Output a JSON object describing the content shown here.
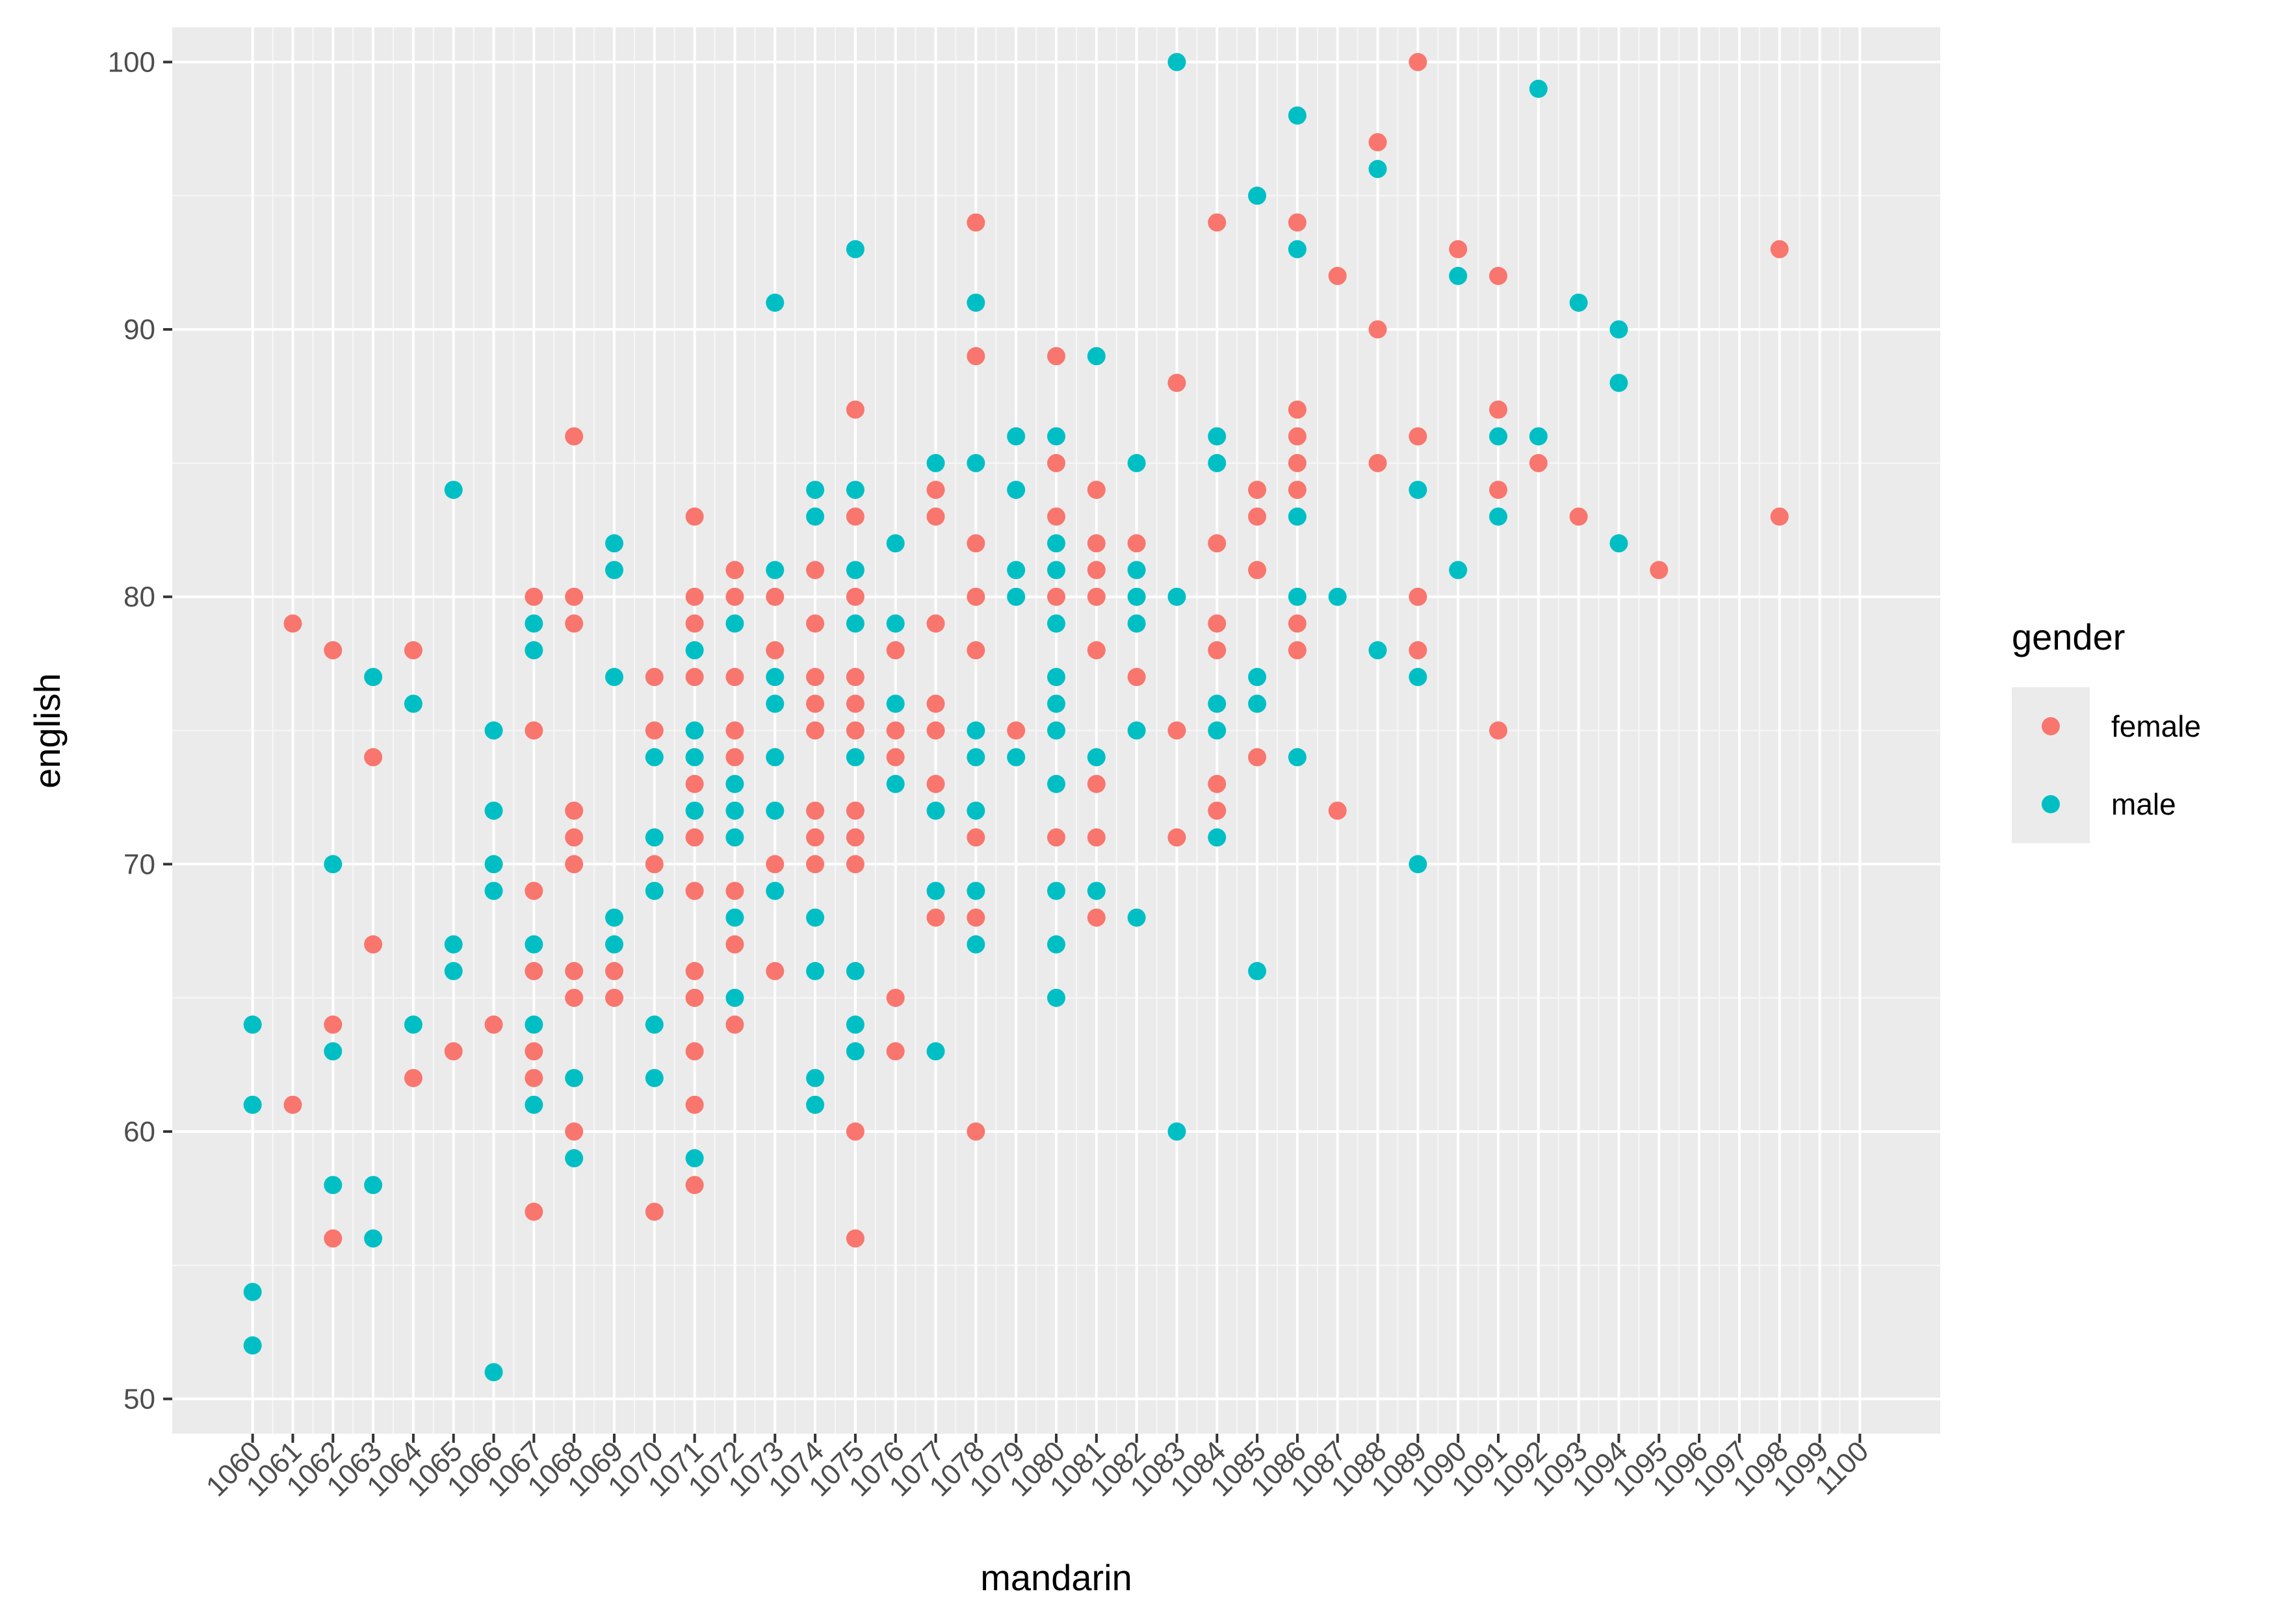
{
  "chart_data": {
    "type": "scatter",
    "xlabel": "mandarin",
    "ylabel": "english",
    "xlim": [
      1058,
      1102
    ],
    "ylim": [
      48.7,
      101.3
    ],
    "xticks": [
      1060,
      1061,
      1062,
      1063,
      1064,
      1065,
      1066,
      1067,
      1068,
      1069,
      1070,
      1071,
      1072,
      1073,
      1074,
      1075,
      1076,
      1077,
      1078,
      1079,
      1080,
      1081,
      1082,
      1083,
      1084,
      1085,
      1086,
      1087,
      1088,
      1089,
      1090,
      1091,
      1092,
      1093,
      1094,
      1095,
      1096,
      1097,
      1098,
      1099,
      1100
    ],
    "yticks": [
      50,
      60,
      70,
      80,
      90,
      100
    ],
    "grid": true,
    "legend": {
      "title": "gender",
      "position": "right"
    },
    "series": [
      {
        "name": "female",
        "color": "#F8766D",
        "points": [
          [
            1061,
            79
          ],
          [
            1061,
            61
          ],
          [
            1062,
            78
          ],
          [
            1062,
            64
          ],
          [
            1062,
            56
          ],
          [
            1063,
            74
          ],
          [
            1063,
            67
          ],
          [
            1064,
            78
          ],
          [
            1064,
            62
          ],
          [
            1065,
            63
          ],
          [
            1066,
            64
          ],
          [
            1067,
            80
          ],
          [
            1067,
            75
          ],
          [
            1067,
            69
          ],
          [
            1067,
            66
          ],
          [
            1067,
            63
          ],
          [
            1067,
            62
          ],
          [
            1067,
            57
          ],
          [
            1068,
            86
          ],
          [
            1068,
            80
          ],
          [
            1068,
            79
          ],
          [
            1068,
            72
          ],
          [
            1068,
            71
          ],
          [
            1068,
            70
          ],
          [
            1068,
            66
          ],
          [
            1068,
            65
          ],
          [
            1068,
            60
          ],
          [
            1069,
            66
          ],
          [
            1069,
            65
          ],
          [
            1070,
            77
          ],
          [
            1070,
            75
          ],
          [
            1070,
            70
          ],
          [
            1070,
            57
          ],
          [
            1071,
            83
          ],
          [
            1071,
            80
          ],
          [
            1071,
            79
          ],
          [
            1071,
            77
          ],
          [
            1071,
            73
          ],
          [
            1071,
            71
          ],
          [
            1071,
            69
          ],
          [
            1071,
            66
          ],
          [
            1071,
            65
          ],
          [
            1071,
            63
          ],
          [
            1071,
            61
          ],
          [
            1071,
            58
          ],
          [
            1072,
            81
          ],
          [
            1072,
            80
          ],
          [
            1072,
            77
          ],
          [
            1072,
            75
          ],
          [
            1072,
            74
          ],
          [
            1072,
            69
          ],
          [
            1072,
            67
          ],
          [
            1072,
            64
          ],
          [
            1073,
            80
          ],
          [
            1073,
            78
          ],
          [
            1073,
            70
          ],
          [
            1073,
            66
          ],
          [
            1074,
            81
          ],
          [
            1074,
            79
          ],
          [
            1074,
            77
          ],
          [
            1074,
            76
          ],
          [
            1074,
            75
          ],
          [
            1074,
            72
          ],
          [
            1074,
            71
          ],
          [
            1074,
            70
          ],
          [
            1075,
            87
          ],
          [
            1075,
            83
          ],
          [
            1075,
            80
          ],
          [
            1075,
            77
          ],
          [
            1075,
            76
          ],
          [
            1075,
            75
          ],
          [
            1075,
            72
          ],
          [
            1075,
            71
          ],
          [
            1075,
            70
          ],
          [
            1075,
            60
          ],
          [
            1075,
            56
          ],
          [
            1076,
            78
          ],
          [
            1076,
            75
          ],
          [
            1076,
            74
          ],
          [
            1076,
            65
          ],
          [
            1076,
            63
          ],
          [
            1077,
            84
          ],
          [
            1077,
            83
          ],
          [
            1077,
            79
          ],
          [
            1077,
            76
          ],
          [
            1077,
            75
          ],
          [
            1077,
            73
          ],
          [
            1077,
            68
          ],
          [
            1078,
            94
          ],
          [
            1078,
            89
          ],
          [
            1078,
            82
          ],
          [
            1078,
            80
          ],
          [
            1078,
            78
          ],
          [
            1078,
            71
          ],
          [
            1078,
            68
          ],
          [
            1078,
            60
          ],
          [
            1079,
            75
          ],
          [
            1080,
            89
          ],
          [
            1080,
            85
          ],
          [
            1080,
            83
          ],
          [
            1080,
            80
          ],
          [
            1080,
            71
          ],
          [
            1081,
            84
          ],
          [
            1081,
            82
          ],
          [
            1081,
            81
          ],
          [
            1081,
            80
          ],
          [
            1081,
            78
          ],
          [
            1081,
            73
          ],
          [
            1081,
            71
          ],
          [
            1081,
            68
          ],
          [
            1082,
            82
          ],
          [
            1082,
            77
          ],
          [
            1083,
            88
          ],
          [
            1083,
            75
          ],
          [
            1083,
            71
          ],
          [
            1084,
            94
          ],
          [
            1084,
            82
          ],
          [
            1084,
            79
          ],
          [
            1084,
            78
          ],
          [
            1084,
            73
          ],
          [
            1084,
            72
          ],
          [
            1085,
            84
          ],
          [
            1085,
            83
          ],
          [
            1085,
            81
          ],
          [
            1085,
            74
          ],
          [
            1086,
            94
          ],
          [
            1086,
            87
          ],
          [
            1086,
            86
          ],
          [
            1086,
            85
          ],
          [
            1086,
            84
          ],
          [
            1086,
            79
          ],
          [
            1086,
            78
          ],
          [
            1087,
            92
          ],
          [
            1087,
            72
          ],
          [
            1088,
            97
          ],
          [
            1088,
            90
          ],
          [
            1088,
            85
          ],
          [
            1089,
            100
          ],
          [
            1089,
            86
          ],
          [
            1089,
            80
          ],
          [
            1089,
            78
          ],
          [
            1090,
            93
          ],
          [
            1091,
            92
          ],
          [
            1091,
            87
          ],
          [
            1091,
            84
          ],
          [
            1091,
            75
          ],
          [
            1092,
            85
          ],
          [
            1093,
            83
          ],
          [
            1095,
            81
          ],
          [
            1098,
            93
          ],
          [
            1098,
            83
          ]
        ]
      },
      {
        "name": "male",
        "color": "#00BFC4",
        "points": [
          [
            1060,
            64
          ],
          [
            1060,
            61
          ],
          [
            1060,
            54
          ],
          [
            1060,
            52
          ],
          [
            1062,
            70
          ],
          [
            1062,
            63
          ],
          [
            1062,
            58
          ],
          [
            1063,
            77
          ],
          [
            1063,
            58
          ],
          [
            1063,
            56
          ],
          [
            1064,
            76
          ],
          [
            1064,
            64
          ],
          [
            1065,
            84
          ],
          [
            1065,
            67
          ],
          [
            1065,
            66
          ],
          [
            1066,
            75
          ],
          [
            1066,
            72
          ],
          [
            1066,
            70
          ],
          [
            1066,
            69
          ],
          [
            1066,
            51
          ],
          [
            1067,
            79
          ],
          [
            1067,
            78
          ],
          [
            1067,
            67
          ],
          [
            1067,
            64
          ],
          [
            1067,
            61
          ],
          [
            1068,
            62
          ],
          [
            1068,
            59
          ],
          [
            1069,
            82
          ],
          [
            1069,
            81
          ],
          [
            1069,
            77
          ],
          [
            1069,
            68
          ],
          [
            1069,
            67
          ],
          [
            1070,
            74
          ],
          [
            1070,
            71
          ],
          [
            1070,
            69
          ],
          [
            1070,
            64
          ],
          [
            1070,
            62
          ],
          [
            1071,
            78
          ],
          [
            1071,
            75
          ],
          [
            1071,
            74
          ],
          [
            1071,
            72
          ],
          [
            1071,
            59
          ],
          [
            1072,
            79
          ],
          [
            1072,
            73
          ],
          [
            1072,
            72
          ],
          [
            1072,
            71
          ],
          [
            1072,
            68
          ],
          [
            1072,
            65
          ],
          [
            1073,
            91
          ],
          [
            1073,
            81
          ],
          [
            1073,
            77
          ],
          [
            1073,
            76
          ],
          [
            1073,
            74
          ],
          [
            1073,
            72
          ],
          [
            1073,
            69
          ],
          [
            1074,
            84
          ],
          [
            1074,
            83
          ],
          [
            1074,
            68
          ],
          [
            1074,
            66
          ],
          [
            1074,
            62
          ],
          [
            1074,
            61
          ],
          [
            1075,
            93
          ],
          [
            1075,
            84
          ],
          [
            1075,
            81
          ],
          [
            1075,
            79
          ],
          [
            1075,
            74
          ],
          [
            1075,
            66
          ],
          [
            1075,
            64
          ],
          [
            1075,
            63
          ],
          [
            1076,
            82
          ],
          [
            1076,
            79
          ],
          [
            1076,
            76
          ],
          [
            1076,
            73
          ],
          [
            1077,
            85
          ],
          [
            1077,
            72
          ],
          [
            1077,
            69
          ],
          [
            1077,
            63
          ],
          [
            1078,
            91
          ],
          [
            1078,
            85
          ],
          [
            1078,
            75
          ],
          [
            1078,
            74
          ],
          [
            1078,
            72
          ],
          [
            1078,
            69
          ],
          [
            1078,
            67
          ],
          [
            1079,
            86
          ],
          [
            1079,
            84
          ],
          [
            1079,
            81
          ],
          [
            1079,
            80
          ],
          [
            1079,
            74
          ],
          [
            1080,
            86
          ],
          [
            1080,
            82
          ],
          [
            1080,
            81
          ],
          [
            1080,
            79
          ],
          [
            1080,
            77
          ],
          [
            1080,
            76
          ],
          [
            1080,
            75
          ],
          [
            1080,
            73
          ],
          [
            1080,
            69
          ],
          [
            1080,
            67
          ],
          [
            1080,
            65
          ],
          [
            1081,
            89
          ],
          [
            1081,
            74
          ],
          [
            1081,
            69
          ],
          [
            1082,
            85
          ],
          [
            1082,
            81
          ],
          [
            1082,
            80
          ],
          [
            1082,
            79
          ],
          [
            1082,
            75
          ],
          [
            1082,
            68
          ],
          [
            1083,
            100
          ],
          [
            1083,
            80
          ],
          [
            1083,
            60
          ],
          [
            1084,
            86
          ],
          [
            1084,
            85
          ],
          [
            1084,
            76
          ],
          [
            1084,
            75
          ],
          [
            1084,
            71
          ],
          [
            1085,
            95
          ],
          [
            1085,
            77
          ],
          [
            1085,
            76
          ],
          [
            1085,
            66
          ],
          [
            1086,
            98
          ],
          [
            1086,
            93
          ],
          [
            1086,
            83
          ],
          [
            1086,
            80
          ],
          [
            1086,
            74
          ],
          [
            1087,
            80
          ],
          [
            1088,
            96
          ],
          [
            1088,
            78
          ],
          [
            1089,
            84
          ],
          [
            1089,
            77
          ],
          [
            1089,
            70
          ],
          [
            1090,
            92
          ],
          [
            1090,
            81
          ],
          [
            1091,
            86
          ],
          [
            1091,
            83
          ],
          [
            1092,
            99
          ],
          [
            1092,
            86
          ],
          [
            1093,
            91
          ],
          [
            1094,
            90
          ],
          [
            1094,
            88
          ],
          [
            1094,
            82
          ]
        ]
      }
    ]
  }
}
